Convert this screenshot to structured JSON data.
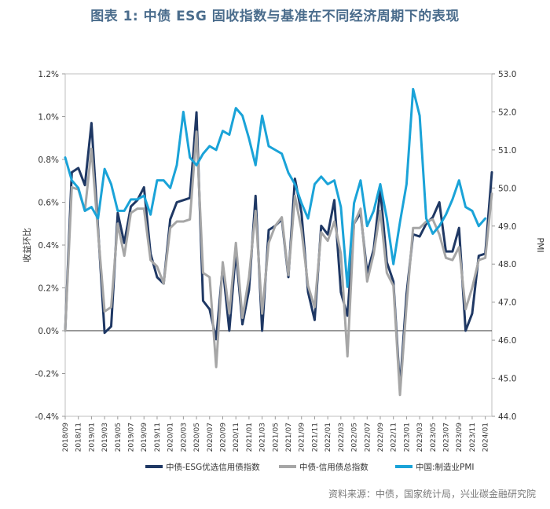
{
  "title": "图表 1:   中债 ESG 固收指数与基准在不同经济周期下的表现",
  "source": "资料来源：中债，国家统计局，兴业碳金融研究院",
  "chart_data": {
    "type": "line",
    "ylabel_left": "收益环比",
    "ylabel_right": "PMI",
    "y_left_lim": [
      -0.4,
      1.2
    ],
    "y_left_ticks": [
      -0.4,
      -0.2,
      0.0,
      0.2,
      0.4,
      0.6,
      0.8,
      1.0,
      1.2
    ],
    "y_left_tick_labels": [
      "-0.4%",
      "-0.2%",
      "0.0%",
      "0.2%",
      "0.4%",
      "0.6%",
      "0.8%",
      "1.0%",
      "1.2%"
    ],
    "y_right_lim": [
      44.0,
      53.0
    ],
    "y_right_ticks": [
      44.0,
      45.0,
      46.0,
      47.0,
      48.0,
      49.0,
      50.0,
      51.0,
      52.0,
      53.0
    ],
    "y_right_tick_labels": [
      "44.0",
      "45.0",
      "46.0",
      "47.0",
      "48.0",
      "49.0",
      "50.0",
      "51.0",
      "52.0",
      "53.0"
    ],
    "x_tick_labels": [
      "2018/09",
      "2018/11",
      "2019/01",
      "2019/03",
      "2019/05",
      "2019/07",
      "2019/09",
      "2019/11",
      "2020/01",
      "2020/03",
      "2020/05",
      "2020/07",
      "2020/09",
      "2020/11",
      "2021/01",
      "2021/03",
      "2021/05",
      "2021/07",
      "2021/09",
      "2021/11",
      "2022/01",
      "2022/03",
      "2022/05",
      "2022/07",
      "2022/09",
      "2022/11",
      "2023/01",
      "2023/03",
      "2023/05",
      "2023/07",
      "2023/09",
      "2023/11",
      "2024/01"
    ],
    "series": [
      {
        "name": "中债-ESG优选信用债指数",
        "axis": "left",
        "color": "#1f3864",
        "values": [
          0.0,
          0.74,
          0.76,
          0.68,
          0.97,
          0.48,
          -0.01,
          0.02,
          0.55,
          0.41,
          0.58,
          0.61,
          0.67,
          0.36,
          0.25,
          0.22,
          0.52,
          0.6,
          0.61,
          0.62,
          1.02,
          0.14,
          0.1,
          -0.04,
          0.3,
          0.0,
          0.37,
          0.03,
          0.19,
          0.63,
          0.0,
          0.47,
          0.49,
          0.52,
          0.25,
          0.71,
          0.55,
          0.18,
          0.05,
          0.49,
          0.45,
          0.61,
          0.18,
          0.07,
          0.5,
          0.55,
          0.27,
          0.38,
          0.66,
          0.32,
          0.23,
          -0.27,
          0.17,
          0.45,
          0.44,
          0.5,
          0.53,
          0.6,
          0.37,
          0.37,
          0.48,
          0.0,
          0.08,
          0.35,
          0.36,
          0.74
        ]
      },
      {
        "name": "中债-信用债总指数",
        "axis": "left",
        "color": "#a6a6a6",
        "values": [
          0.0,
          0.67,
          0.66,
          0.56,
          0.85,
          0.46,
          0.09,
          0.11,
          0.5,
          0.35,
          0.55,
          0.57,
          0.57,
          0.33,
          0.3,
          0.22,
          0.48,
          0.51,
          0.51,
          0.52,
          0.93,
          0.27,
          0.25,
          -0.17,
          0.32,
          0.08,
          0.41,
          0.06,
          0.25,
          0.56,
          0.08,
          0.41,
          0.49,
          0.53,
          0.26,
          0.63,
          0.47,
          0.21,
          0.11,
          0.46,
          0.42,
          0.51,
          0.36,
          -0.12,
          0.5,
          0.57,
          0.23,
          0.36,
          0.56,
          0.27,
          0.21,
          -0.3,
          0.12,
          0.48,
          0.48,
          0.51,
          0.52,
          0.45,
          0.34,
          0.33,
          0.39,
          0.1,
          0.2,
          0.33,
          0.34,
          0.64
        ]
      },
      {
        "name": "中国:制造业PMI",
        "axis": "right",
        "color": "#1aa3d8",
        "values": [
          50.8,
          50.2,
          50.0,
          49.4,
          49.5,
          49.2,
          50.5,
          50.1,
          49.4,
          49.4,
          49.7,
          49.7,
          49.8,
          49.3,
          50.2,
          50.2,
          50.0,
          50.6,
          52.0,
          50.8,
          50.6,
          50.9,
          51.1,
          51.0,
          51.5,
          51.4,
          52.1,
          51.9,
          51.3,
          50.6,
          51.9,
          51.1,
          51.0,
          50.9,
          50.4,
          50.1,
          49.6,
          49.2,
          50.1,
          50.3,
          50.1,
          50.2,
          49.5,
          47.4,
          49.6,
          50.2,
          49.0,
          49.4,
          50.1,
          49.2,
          48.0,
          49.1,
          50.1,
          52.6,
          51.9,
          49.2,
          48.8,
          49.0,
          49.3,
          49.7,
          50.2,
          49.5,
          49.4,
          49.0,
          49.2
        ]
      }
    ],
    "legend_position": "bottom"
  }
}
